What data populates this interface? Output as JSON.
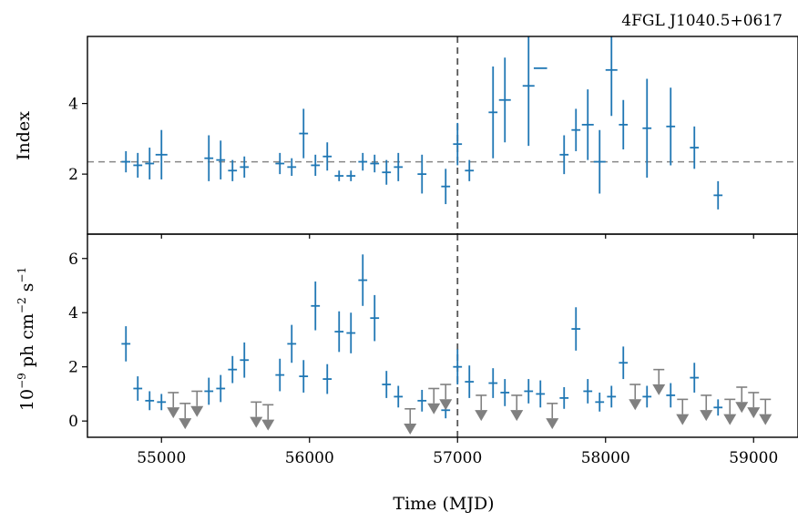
{
  "chart_data": [
    {
      "type": "scatter",
      "panel": "top",
      "title": "4FGL J1040.5+0617",
      "xlabel": "",
      "ylabel": "Index",
      "xlim": [
        54500,
        59300
      ],
      "ylim": [
        0.3,
        5.9
      ],
      "yticks": [
        2,
        4
      ],
      "hline": 2.35,
      "vline": 57000,
      "color": "#1f77b4",
      "points": [
        {
          "x": 54760,
          "y": 2.35,
          "err": 0.3,
          "xerr": 30
        },
        {
          "x": 54840,
          "y": 2.25,
          "err": 0.35,
          "xerr": 30
        },
        {
          "x": 54920,
          "y": 2.3,
          "err": 0.45,
          "xerr": 30
        },
        {
          "x": 55000,
          "y": 2.55,
          "err": 0.7,
          "xerr": 40
        },
        {
          "x": 55320,
          "y": 2.45,
          "err": 0.65,
          "xerr": 30
        },
        {
          "x": 55400,
          "y": 2.4,
          "err": 0.55,
          "xerr": 30
        },
        {
          "x": 55480,
          "y": 2.1,
          "err": 0.3,
          "xerr": 30
        },
        {
          "x": 55560,
          "y": 2.2,
          "err": 0.3,
          "xerr": 30
        },
        {
          "x": 55800,
          "y": 2.3,
          "err": 0.3,
          "xerr": 30
        },
        {
          "x": 55880,
          "y": 2.2,
          "err": 0.25,
          "xerr": 30
        },
        {
          "x": 55960,
          "y": 3.15,
          "err": 0.7,
          "xerr": 30
        },
        {
          "x": 56040,
          "y": 2.25,
          "err": 0.3,
          "xerr": 30
        },
        {
          "x": 56120,
          "y": 2.5,
          "err": 0.4,
          "xerr": 30
        },
        {
          "x": 56200,
          "y": 1.95,
          "err": 0.15,
          "xerr": 30
        },
        {
          "x": 56280,
          "y": 1.95,
          "err": 0.15,
          "xerr": 30
        },
        {
          "x": 56360,
          "y": 2.35,
          "err": 0.25,
          "xerr": 30
        },
        {
          "x": 56440,
          "y": 2.3,
          "err": 0.25,
          "xerr": 30
        },
        {
          "x": 56520,
          "y": 2.05,
          "err": 0.35,
          "xerr": 30
        },
        {
          "x": 56600,
          "y": 2.2,
          "err": 0.4,
          "xerr": 30
        },
        {
          "x": 56760,
          "y": 2.0,
          "err": 0.55,
          "xerr": 30
        },
        {
          "x": 56920,
          "y": 1.65,
          "err": 0.5,
          "xerr": 30
        },
        {
          "x": 57000,
          "y": 2.85,
          "err": 0.6,
          "xerr": 30
        },
        {
          "x": 57080,
          "y": 2.1,
          "err": 0.3,
          "xerr": 30
        },
        {
          "x": 57240,
          "y": 3.75,
          "err": 1.3,
          "xerr": 30
        },
        {
          "x": 57320,
          "y": 4.1,
          "err": 1.2,
          "xerr": 40
        },
        {
          "x": 57480,
          "y": 4.5,
          "err": 1.7,
          "xerr": 40
        },
        {
          "x": 57560,
          "y": 5.0,
          "err": 0.0,
          "xerr": 45
        },
        {
          "x": 57720,
          "y": 2.55,
          "err": 0.55,
          "xerr": 30
        },
        {
          "x": 57800,
          "y": 3.25,
          "err": 0.6,
          "xerr": 30
        },
        {
          "x": 57880,
          "y": 3.4,
          "err": 1.0,
          "xerr": 40
        },
        {
          "x": 57960,
          "y": 2.35,
          "err": 0.9,
          "xerr": 40
        },
        {
          "x": 58040,
          "y": 4.95,
          "err": 1.3,
          "xerr": 40
        },
        {
          "x": 58120,
          "y": 3.4,
          "err": 0.7,
          "xerr": 30
        },
        {
          "x": 58280,
          "y": 3.3,
          "err": 1.4,
          "xerr": 30
        },
        {
          "x": 58440,
          "y": 3.35,
          "err": 1.1,
          "xerr": 30
        },
        {
          "x": 58600,
          "y": 2.75,
          "err": 0.6,
          "xerr": 30
        },
        {
          "x": 58760,
          "y": 1.4,
          "err": 0.4,
          "xerr": 30
        }
      ]
    },
    {
      "type": "scatter",
      "panel": "bottom",
      "xlabel": "Time (MJD)",
      "ylabel": "10⁻⁹ ph cm⁻² s⁻¹",
      "xlim": [
        54500,
        59300
      ],
      "ylim": [
        -0.6,
        6.9
      ],
      "xticks": [
        55000,
        56000,
        57000,
        58000,
        59000
      ],
      "yticks": [
        0,
        2,
        4,
        6
      ],
      "vline": 57000,
      "color": "#1f77b4",
      "upper_limit_color": "#808080",
      "points": [
        {
          "x": 54760,
          "y": 2.85,
          "err": 0.65
        },
        {
          "x": 54840,
          "y": 1.2,
          "err": 0.45
        },
        {
          "x": 54920,
          "y": 0.75,
          "err": 0.35
        },
        {
          "x": 55000,
          "y": 0.7,
          "err": 0.3
        },
        {
          "x": 55320,
          "y": 1.1,
          "err": 0.5
        },
        {
          "x": 55400,
          "y": 1.2,
          "err": 0.5
        },
        {
          "x": 55480,
          "y": 1.9,
          "err": 0.5
        },
        {
          "x": 55560,
          "y": 2.25,
          "err": 0.65
        },
        {
          "x": 55800,
          "y": 1.7,
          "err": 0.6
        },
        {
          "x": 55880,
          "y": 2.85,
          "err": 0.7
        },
        {
          "x": 55960,
          "y": 1.65,
          "err": 0.6
        },
        {
          "x": 56040,
          "y": 4.25,
          "err": 0.9
        },
        {
          "x": 56120,
          "y": 1.55,
          "err": 0.55
        },
        {
          "x": 56200,
          "y": 3.3,
          "err": 0.75
        },
        {
          "x": 56280,
          "y": 3.25,
          "err": 0.75
        },
        {
          "x": 56360,
          "y": 5.2,
          "err": 0.95
        },
        {
          "x": 56440,
          "y": 3.8,
          "err": 0.85
        },
        {
          "x": 56520,
          "y": 1.35,
          "err": 0.5
        },
        {
          "x": 56600,
          "y": 0.9,
          "err": 0.4
        },
        {
          "x": 56760,
          "y": 0.75,
          "err": 0.4
        },
        {
          "x": 56920,
          "y": 0.4,
          "err": 0.3
        },
        {
          "x": 57000,
          "y": 2.0,
          "err": 0.65
        },
        {
          "x": 57080,
          "y": 1.45,
          "err": 0.6
        },
        {
          "x": 57240,
          "y": 1.4,
          "err": 0.55
        },
        {
          "x": 57320,
          "y": 1.05,
          "err": 0.5
        },
        {
          "x": 57480,
          "y": 1.1,
          "err": 0.45
        },
        {
          "x": 57560,
          "y": 1.0,
          "err": 0.5
        },
        {
          "x": 57720,
          "y": 0.85,
          "err": 0.4
        },
        {
          "x": 57800,
          "y": 3.4,
          "err": 0.8
        },
        {
          "x": 57880,
          "y": 1.1,
          "err": 0.45
        },
        {
          "x": 57960,
          "y": 0.7,
          "err": 0.35
        },
        {
          "x": 58040,
          "y": 0.9,
          "err": 0.4
        },
        {
          "x": 58120,
          "y": 2.15,
          "err": 0.6
        },
        {
          "x": 58280,
          "y": 0.9,
          "err": 0.4
        },
        {
          "x": 58440,
          "y": 0.95,
          "err": 0.45
        },
        {
          "x": 58600,
          "y": 1.6,
          "err": 0.55
        },
        {
          "x": 58760,
          "y": 0.5,
          "err": 0.3
        }
      ],
      "upper_limits": [
        {
          "x": 55080,
          "y": 1.05
        },
        {
          "x": 55160,
          "y": 0.65
        },
        {
          "x": 55240,
          "y": 1.1
        },
        {
          "x": 55640,
          "y": 0.7
        },
        {
          "x": 55720,
          "y": 0.6
        },
        {
          "x": 56680,
          "y": 0.45
        },
        {
          "x": 56840,
          "y": 1.2
        },
        {
          "x": 56920,
          "y": 1.35
        },
        {
          "x": 57160,
          "y": 0.95
        },
        {
          "x": 57400,
          "y": 0.95
        },
        {
          "x": 57640,
          "y": 0.65
        },
        {
          "x": 58200,
          "y": 1.35
        },
        {
          "x": 58360,
          "y": 1.9
        },
        {
          "x": 58520,
          "y": 0.8
        },
        {
          "x": 58680,
          "y": 0.95
        },
        {
          "x": 58840,
          "y": 0.8
        },
        {
          "x": 58920,
          "y": 1.25
        },
        {
          "x": 59000,
          "y": 1.05
        },
        {
          "x": 59080,
          "y": 0.8
        }
      ]
    }
  ]
}
